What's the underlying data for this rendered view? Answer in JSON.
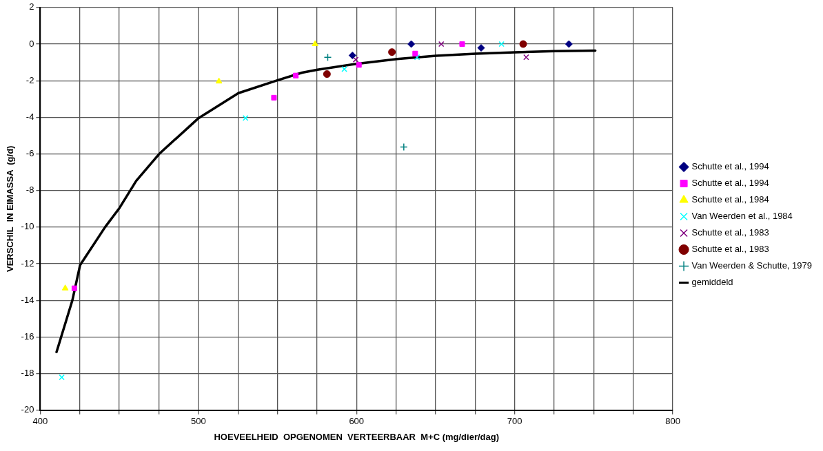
{
  "chart_data": {
    "type": "scatter",
    "xlabel": "HOEVEELHEID  OPGENOMEN  VERTEERBAAR  M+C (mg/dier/dag)",
    "ylabel": "VERSCHIL  IN EIMASSA  (g/d)",
    "xlim": [
      400,
      800
    ],
    "xticks": [
      400,
      {
        "value": 425,
        "label": null
      },
      {
        "value": 450,
        "label": null
      },
      {
        "value": 475,
        "label": null
      },
      500,
      {
        "value": 525,
        "label": null
      },
      {
        "value": 550,
        "label": null
      },
      {
        "value": 575,
        "label": null
      },
      600,
      {
        "value": 625,
        "label": null
      },
      {
        "value": 650,
        "label": null
      },
      {
        "value": 675,
        "label": null
      },
      700,
      {
        "value": 725,
        "label": null
      },
      {
        "value": 750,
        "label": null
      },
      {
        "value": 775,
        "label": null
      },
      800
    ],
    "ylim": [
      -20,
      2
    ],
    "yticks": [
      -20,
      -18,
      -16,
      -14,
      -12,
      -10,
      -8,
      -6,
      -4,
      -2,
      0,
      2
    ],
    "grid": true,
    "legend": "right",
    "series": [
      {
        "name": "Schutte et al., 1994",
        "color": "#000080",
        "marker": "diamond",
        "x": [
          597.4,
          634.6,
          678.8,
          734.3
        ],
        "values": [
          -0.62,
          0,
          -0.21,
          0
        ]
      },
      {
        "name": "Schutte et al., 1994",
        "color": "#ff00ff",
        "marker": "square",
        "x": [
          421.6,
          547.8,
          561.6,
          601.5,
          637.1,
          666.8
        ],
        "values": [
          -13.34,
          -2.93,
          -1.72,
          -1.14,
          -0.52,
          0
        ]
      },
      {
        "name": "Schutte et al., 1984",
        "color": "#ffff00",
        "marker": "triangle",
        "x": [
          415.8,
          513.0,
          573.8
        ],
        "values": [
          -13.34,
          -2.04,
          0
        ]
      },
      {
        "name": "Van Weerden et al., 1984",
        "color": "#00ffff",
        "marker": "cross",
        "x": [
          413.6,
          529.8,
          592.3,
          638.3,
          691.7
        ],
        "values": [
          -18.2,
          -4.04,
          -1.37,
          -0.72,
          0
        ]
      },
      {
        "name": "Schutte et al., 1983",
        "color": "#800080",
        "marker": "cross",
        "x": [
          599.5,
          653.6,
          707.3
        ],
        "values": [
          -0.85,
          0,
          -0.72
        ]
      },
      {
        "name": "Schutte et al., 1983",
        "color": "#800000",
        "marker": "circle",
        "x": [
          581.3,
          622.4,
          705.4
        ],
        "values": [
          -1.64,
          -0.44,
          0
        ]
      },
      {
        "name": "Van Weerden & Schutte, 1979",
        "color": "#008080",
        "marker": "plus",
        "x": [
          581.8,
          629.9
        ],
        "values": [
          -0.72,
          -5.62
        ]
      },
      {
        "name": "gemiddeld",
        "type": "line",
        "color": "#000000",
        "marker": "none",
        "x": [
          410.3,
          420.3,
          425.2,
          441,
          450.2,
          460.7,
          475.2,
          500.2,
          525.3,
          550.3,
          565.6,
          575.3,
          600,
          625.5,
          650.2,
          675.2,
          700,
          725.4,
          751
        ],
        "values": [
          -16.82,
          -14,
          -12.07,
          -10,
          -8.94,
          -7.47,
          -6.0,
          -4.04,
          -2.68,
          -1.97,
          -1.56,
          -1.4,
          -1.08,
          -0.82,
          -0.64,
          -0.53,
          -0.45,
          -0.39,
          -0.36
        ]
      }
    ]
  }
}
